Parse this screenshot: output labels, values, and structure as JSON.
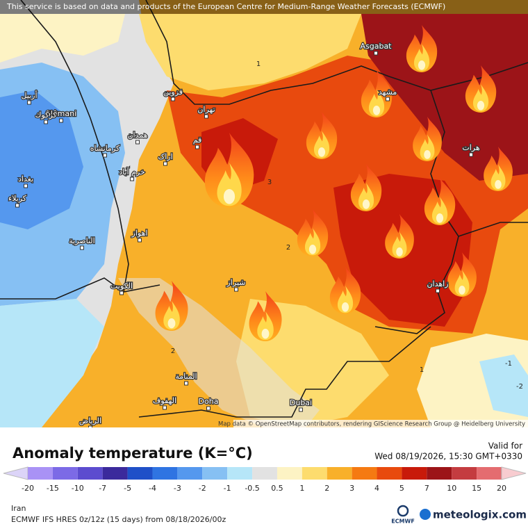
{
  "header": {
    "notice": "This service is based on data and products of the European Centre for Medium-Range Weather Forecasts (ECMWF)"
  },
  "map": {
    "places": [
      {
        "label": "Asgabat"
      },
      {
        "label": "Slêmani"
      },
      {
        "label": "مشهد"
      },
      {
        "label": "هرات"
      },
      {
        "label": "تهران"
      },
      {
        "label": "قزوین"
      },
      {
        "label": "قم"
      },
      {
        "label": "اراک"
      },
      {
        "label": "همدان"
      },
      {
        "label": "کرمانشاه"
      },
      {
        "label": "خرم آباد"
      },
      {
        "label": "اهواز"
      },
      {
        "label": "بغداد"
      },
      {
        "label": "کربلاء"
      },
      {
        "label": "الناصرية"
      },
      {
        "label": "الكويت"
      },
      {
        "label": "شیراز"
      },
      {
        "label": "زاهدان"
      },
      {
        "label": "المنامة"
      },
      {
        "label": "الهفوف"
      },
      {
        "label": "الرياض"
      },
      {
        "label": "Doha"
      },
      {
        "label": "Dubai"
      },
      {
        "label": "كركوك"
      },
      {
        "label": "أربيل"
      }
    ],
    "contour_labels": [
      "1",
      "2",
      "3",
      "-1",
      "-2",
      "2",
      "1"
    ],
    "attribution": "Map data © OpenStreetMap contributors, rendering GIScience Research Group @ Heidelberg University"
  },
  "legend": {
    "title": "Anomaly temperature (K=°C)",
    "valid_label": "Valid for",
    "valid_time": "Wed 08/19/2026, 15:30 GMT+0330",
    "ticks": [
      -20,
      -15,
      -10,
      -7,
      -5,
      -4,
      -3,
      -2,
      -1,
      -0.5,
      0.5,
      1,
      2,
      3,
      4,
      5,
      7,
      10,
      15,
      20
    ],
    "below_color": "#dcd4f8",
    "colors": [
      "#a992f5",
      "#7c6ae6",
      "#5c4ccf",
      "#3b2a9c",
      "#1f50c8",
      "#2f74e2",
      "#5598ee",
      "#86c0f3",
      "#b6e6f8",
      "#e2e2e2",
      "#fdf3c4",
      "#fddc6e",
      "#f8b02a",
      "#f57a12",
      "#e84a0e",
      "#c81a0a",
      "#9c1418",
      "#c43c40",
      "#e46c70"
    ],
    "above_color": "#f8ccd0"
  },
  "footer": {
    "region": "Iran",
    "model": "ECMWF IFS HRES 0z/12z (15 days) from 08/18/2026/00z",
    "ecmwf_logo": "ECMWF",
    "brand": "meteologix.com"
  }
}
